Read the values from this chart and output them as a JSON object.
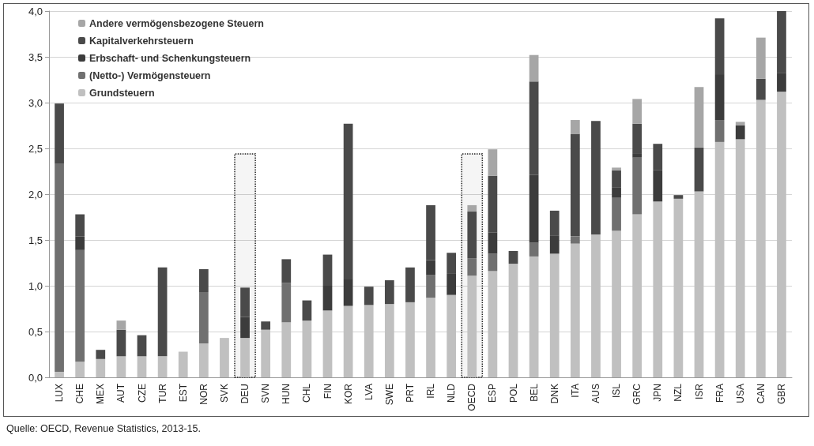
{
  "chart_data": {
    "type": "bar",
    "stacked": true,
    "categories": [
      "LUX",
      "CHE",
      "MEX",
      "AUT",
      "CZE",
      "TUR",
      "EST",
      "NOR",
      "SVK",
      "DEU",
      "SVN",
      "HUN",
      "CHL",
      "FIN",
      "KOR",
      "LVA",
      "SWE",
      "PRT",
      "IRL",
      "NLD",
      "OECD",
      "ESP",
      "POL",
      "BEL",
      "DNK",
      "ITA",
      "AUS",
      "ISL",
      "GRC",
      "JPN",
      "NZL",
      "ISR",
      "FRA",
      "USA",
      "CAN",
      "GBR"
    ],
    "series": [
      {
        "name": "Grundsteuern",
        "color": "#c0c0c0",
        "values": [
          0.06,
          0.17,
          0.2,
          0.23,
          0.23,
          0.23,
          0.28,
          0.37,
          0.43,
          0.43,
          0.52,
          0.6,
          0.62,
          0.73,
          0.78,
          0.79,
          0.8,
          0.82,
          0.87,
          0.9,
          1.11,
          1.16,
          1.24,
          1.32,
          1.35,
          1.46,
          1.56,
          1.6,
          1.78,
          1.92,
          1.95,
          2.03,
          2.57,
          2.6,
          3.03,
          3.12
        ]
      },
      {
        "name": "(Netto-) Vermögensteuern",
        "color": "#707070",
        "values": [
          2.27,
          1.22,
          0,
          0,
          0,
          0,
          0,
          0.56,
          0,
          0,
          0,
          0.43,
          0,
          0,
          0,
          0,
          0,
          0,
          0.25,
          0,
          0.19,
          0.19,
          0,
          0.15,
          0,
          0.08,
          0,
          0.36,
          0.62,
          0,
          0,
          0,
          0.24,
          0,
          0,
          0
        ]
      },
      {
        "name": "Erbschaft- und Schenkungsteuern",
        "color": "#3c3c3c",
        "values": [
          0,
          0.15,
          0,
          0,
          0,
          0,
          0,
          0,
          0,
          0.23,
          0,
          0,
          0,
          0.27,
          0.29,
          0,
          0,
          0,
          0.16,
          0.23,
          0,
          0.23,
          0,
          0.74,
          0.2,
          0,
          0,
          0.11,
          0.04,
          0.34,
          0,
          0,
          0.5,
          0.15,
          0,
          0.2
        ]
      },
      {
        "name": "Kapitalverkehrsteuern",
        "color": "#4a4a4a",
        "values": [
          0.66,
          0.24,
          0.1,
          0.29,
          0.23,
          0.97,
          0,
          0.25,
          0,
          0.32,
          0.09,
          0.26,
          0.22,
          0.34,
          1.7,
          0.2,
          0.26,
          0.38,
          0.6,
          0.23,
          0.51,
          0.62,
          0.14,
          1.02,
          0.27,
          1.12,
          1.24,
          0.19,
          0.33,
          0.29,
          0.04,
          0.48,
          0.61,
          0,
          0.23,
          0.68
        ]
      },
      {
        "name": "Andere vermögensbezogene Steuern",
        "color": "#a6a6a6",
        "values": [
          0,
          0,
          0,
          0.1,
          0,
          0,
          0,
          0,
          0,
          0,
          0,
          0,
          0,
          0,
          0,
          0,
          0,
          0,
          0,
          0,
          0.07,
          0.29,
          0,
          0.29,
          0,
          0.15,
          0,
          0.03,
          0.27,
          0,
          0,
          0.66,
          0,
          0.04,
          0.45,
          0
        ]
      }
    ],
    "ylim": [
      0,
      4
    ],
    "yticks": [
      {
        "value": 0,
        "label": "0,0"
      },
      {
        "value": 0.5,
        "label": "0,5"
      },
      {
        "value": 1,
        "label": "1,0"
      },
      {
        "value": 1.5,
        "label": "1,5"
      },
      {
        "value": 2,
        "label": "2,0"
      },
      {
        "value": 2.5,
        "label": "2,5"
      },
      {
        "value": 3,
        "label": "3,0"
      },
      {
        "value": 3.5,
        "label": "3,5"
      },
      {
        "value": 4,
        "label": "4,0"
      }
    ],
    "grid": "y",
    "legend": "top left",
    "bands": [
      {
        "axis": "x",
        "from": "DEU",
        "to": "DEU"
      },
      {
        "axis": "x",
        "from": "OECD",
        "to": "OECD"
      }
    ],
    "annotations": [
      "Quelle: OECD, Revenue Statistics, 2013-15."
    ]
  }
}
